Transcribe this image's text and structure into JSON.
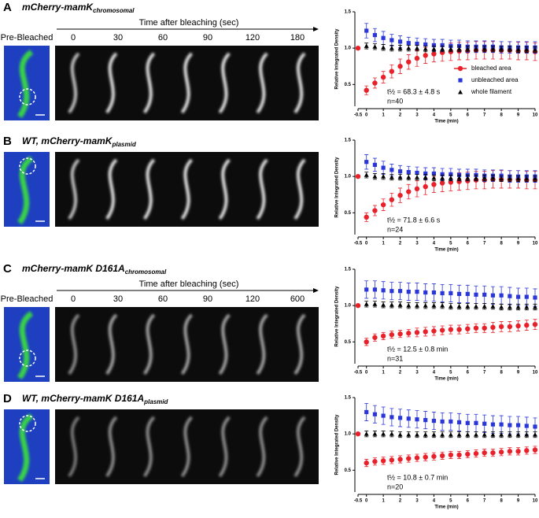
{
  "panels": [
    {
      "label": "A",
      "title": "mCherry-mamK",
      "title_sub": "chromosomal",
      "time_header": "Time after bleaching (sec)",
      "pre_label": "Pre-Bleached",
      "time_labels": [
        0,
        30,
        60,
        90,
        120,
        180
      ]
    },
    {
      "label": "B",
      "title": "WT, mCherry-mamK",
      "title_sub": "plasmid"
    },
    {
      "label": "C",
      "title": "mCherry-mamK D161A",
      "title_sub": "chromosomal",
      "time_header": "Time after bleaching (sec)",
      "pre_label": "Pre-Bleached",
      "time_labels": [
        0,
        30,
        60,
        90,
        120,
        600
      ]
    },
    {
      "label": "D",
      "title": "WT, mCherry-mamK D161A",
      "title_sub": "plasmid"
    }
  ],
  "chart_data": [
    {
      "type": "scatter",
      "xlabel": "Time (min)",
      "ylabel": "Relative Integrated Density",
      "x": [
        -0.5,
        0,
        0.5,
        1,
        1.5,
        2,
        2.5,
        3,
        3.5,
        4,
        4.5,
        5,
        5.5,
        6,
        6.5,
        7,
        7.5,
        8,
        8.5,
        9,
        9.5,
        10
      ],
      "xlim": [
        -0.5,
        10
      ],
      "xticks": [
        -0.5,
        0,
        1,
        2,
        3,
        4,
        5,
        6,
        7,
        8,
        9,
        10
      ],
      "ylim": [
        0.2,
        1.5
      ],
      "yticks": [
        0.5,
        {
          "value": 1,
          "label": "1.0"
        },
        1.5
      ],
      "legend": "right",
      "annotations": [
        "t½ = 68.3 ± 4.8 s",
        "n=40"
      ],
      "series": [
        {
          "name": "bleached area",
          "color": "#e8202a",
          "marker": "circle",
          "values": [
            1.0,
            0.42,
            0.52,
            0.6,
            0.68,
            0.75,
            0.81,
            0.86,
            0.9,
            0.92,
            0.94,
            0.95,
            0.96,
            0.96,
            0.97,
            0.97,
            0.97,
            0.97,
            0.97,
            0.96,
            0.96,
            0.95
          ],
          "errors": [
            null,
            0.06,
            0.07,
            0.08,
            0.09,
            0.1,
            0.1,
            0.11,
            0.11,
            0.11,
            0.12,
            0.12,
            0.12,
            0.12,
            0.12,
            0.12,
            0.12,
            0.12,
            0.12,
            0.12,
            0.12,
            0.12
          ]
        },
        {
          "name": "unbleached area",
          "color": "#2a36d8",
          "marker": "square",
          "values": [
            null,
            1.24,
            1.18,
            1.14,
            1.11,
            1.09,
            1.07,
            1.06,
            1.05,
            1.04,
            1.04,
            1.03,
            1.03,
            1.02,
            1.02,
            1.02,
            1.02,
            1.01,
            1.01,
            1.01,
            1.01,
            1.01
          ],
          "errors": [
            null,
            0.1,
            0.09,
            0.09,
            0.08,
            0.08,
            0.08,
            0.08,
            0.08,
            0.08,
            0.08,
            0.08,
            0.08,
            0.08,
            0.08,
            0.08,
            0.08,
            0.08,
            0.08,
            0.08,
            0.08,
            0.08
          ]
        },
        {
          "name": "whole filament",
          "color": "#000000",
          "marker": "triangle",
          "values": [
            null,
            1.03,
            1.02,
            1.01,
            1.0,
            1.0,
            1.0,
            1.0,
            0.99,
            0.99,
            0.99,
            0.99,
            0.99,
            0.99,
            0.99,
            0.99,
            0.99,
            0.99,
            0.99,
            0.98,
            0.98,
            0.98
          ],
          "errors": [
            null,
            0.04,
            0.04,
            0.04,
            0.04,
            0.04,
            0.04,
            0.04,
            0.04,
            0.04,
            0.04,
            0.04,
            0.04,
            0.04,
            0.04,
            0.04,
            0.04,
            0.04,
            0.04,
            0.04,
            0.04,
            0.04
          ]
        }
      ]
    },
    {
      "type": "scatter",
      "xlabel": "Time (min)",
      "ylabel": "Relative Integrated Density",
      "x": [
        -0.5,
        0,
        0.5,
        1,
        1.5,
        2,
        2.5,
        3,
        3.5,
        4,
        4.5,
        5,
        5.5,
        6,
        6.5,
        7,
        7.5,
        8,
        8.5,
        9,
        9.5,
        10
      ],
      "xlim": [
        -0.5,
        10
      ],
      "xticks": [
        -0.5,
        0,
        1,
        2,
        3,
        4,
        5,
        6,
        7,
        8,
        9,
        10
      ],
      "ylim": [
        0.2,
        1.5
      ],
      "yticks": [
        0.5,
        {
          "value": 1,
          "label": "1.0"
        },
        1.5
      ],
      "annotations": [
        "t½ = 71.8 ± 6.6 s",
        "n=24"
      ],
      "series": [
        {
          "color": "#e8202a",
          "marker": "circle",
          "values": [
            1.0,
            0.44,
            0.53,
            0.61,
            0.68,
            0.74,
            0.79,
            0.83,
            0.86,
            0.89,
            0.91,
            0.92,
            0.93,
            0.94,
            0.95,
            0.95,
            0.96,
            0.96,
            0.96,
            0.96,
            0.95,
            0.95
          ],
          "errors": [
            null,
            0.06,
            0.07,
            0.08,
            0.09,
            0.1,
            0.1,
            0.11,
            0.11,
            0.11,
            0.12,
            0.12,
            0.12,
            0.12,
            0.12,
            0.12,
            0.12,
            0.12,
            0.12,
            0.12,
            0.12,
            0.12
          ]
        },
        {
          "color": "#2a36d8",
          "marker": "square",
          "values": [
            null,
            1.2,
            1.16,
            1.12,
            1.09,
            1.07,
            1.06,
            1.05,
            1.04,
            1.04,
            1.03,
            1.03,
            1.02,
            1.02,
            1.02,
            1.01,
            1.01,
            1.01,
            1.0,
            1.0,
            1.0,
            1.0
          ],
          "errors": [
            null,
            0.1,
            0.09,
            0.09,
            0.08,
            0.08,
            0.08,
            0.08,
            0.08,
            0.08,
            0.08,
            0.08,
            0.08,
            0.08,
            0.08,
            0.08,
            0.08,
            0.08,
            0.08,
            0.08,
            0.08,
            0.08
          ]
        },
        {
          "color": "#000000",
          "marker": "triangle",
          "values": [
            null,
            1.02,
            1.0,
            1.0,
            0.99,
            0.99,
            0.99,
            0.99,
            0.99,
            0.98,
            0.98,
            0.98,
            0.98,
            0.98,
            0.98,
            0.98,
            0.98,
            0.97,
            0.97,
            0.97,
            0.97,
            0.97
          ],
          "errors": [
            null,
            0.04,
            0.04,
            0.04,
            0.04,
            0.04,
            0.04,
            0.04,
            0.04,
            0.04,
            0.04,
            0.04,
            0.04,
            0.04,
            0.04,
            0.04,
            0.04,
            0.04,
            0.04,
            0.04,
            0.04,
            0.04
          ]
        }
      ]
    },
    {
      "type": "scatter",
      "xlabel": "Time (min)",
      "ylabel": "Relative Integrated Density",
      "x": [
        -0.5,
        0,
        0.5,
        1,
        1.5,
        2,
        2.5,
        3,
        3.5,
        4,
        4.5,
        5,
        5.5,
        6,
        6.5,
        7,
        7.5,
        8,
        8.5,
        9,
        9.5,
        10
      ],
      "xlim": [
        -0.5,
        10
      ],
      "xticks": [
        -0.5,
        0,
        1,
        2,
        3,
        4,
        5,
        6,
        7,
        8,
        9,
        10
      ],
      "ylim": [
        0.2,
        1.5
      ],
      "yticks": [
        0.5,
        {
          "value": 1,
          "label": "1.0"
        },
        1.5
      ],
      "annotations": [
        "t½ = 12.5 ± 0.8 min",
        "n=31"
      ],
      "series": [
        {
          "color": "#e8202a",
          "marker": "circle",
          "values": [
            1.0,
            0.5,
            0.56,
            0.58,
            0.6,
            0.61,
            0.62,
            0.63,
            0.64,
            0.65,
            0.66,
            0.67,
            0.67,
            0.68,
            0.69,
            0.69,
            0.7,
            0.71,
            0.71,
            0.72,
            0.73,
            0.74
          ],
          "errors": [
            null,
            0.05,
            0.05,
            0.05,
            0.05,
            0.05,
            0.05,
            0.06,
            0.06,
            0.06,
            0.06,
            0.06,
            0.06,
            0.06,
            0.06,
            0.06,
            0.07,
            0.07,
            0.07,
            0.07,
            0.07,
            0.07
          ]
        },
        {
          "color": "#2a36d8",
          "marker": "square",
          "values": [
            null,
            1.22,
            1.22,
            1.21,
            1.2,
            1.2,
            1.19,
            1.19,
            1.18,
            1.18,
            1.17,
            1.17,
            1.16,
            1.16,
            1.15,
            1.15,
            1.14,
            1.14,
            1.13,
            1.12,
            1.12,
            1.11
          ],
          "errors": [
            null,
            0.12,
            0.12,
            0.12,
            0.12,
            0.12,
            0.12,
            0.12,
            0.12,
            0.12,
            0.12,
            0.12,
            0.12,
            0.12,
            0.12,
            0.12,
            0.12,
            0.12,
            0.12,
            0.12,
            0.12,
            0.12
          ]
        },
        {
          "color": "#000000",
          "marker": "triangle",
          "values": [
            null,
            1.02,
            1.02,
            1.01,
            1.01,
            1.01,
            1.0,
            1.0,
            1.0,
            1.0,
            1.0,
            0.99,
            0.99,
            0.99,
            0.99,
            0.99,
            0.99,
            0.98,
            0.98,
            0.98,
            0.98,
            0.98
          ],
          "errors": [
            null,
            0.04,
            0.04,
            0.04,
            0.04,
            0.04,
            0.04,
            0.04,
            0.04,
            0.04,
            0.04,
            0.04,
            0.04,
            0.04,
            0.04,
            0.04,
            0.04,
            0.04,
            0.04,
            0.04,
            0.04,
            0.04
          ]
        }
      ]
    },
    {
      "type": "scatter",
      "xlabel": "Time (min)",
      "ylabel": "Relative Integrated Density",
      "x": [
        -0.5,
        0,
        0.5,
        1,
        1.5,
        2,
        2.5,
        3,
        3.5,
        4,
        4.5,
        5,
        5.5,
        6,
        6.5,
        7,
        7.5,
        8,
        8.5,
        9,
        9.5,
        10
      ],
      "xlim": [
        -0.5,
        10
      ],
      "xticks": [
        -0.5,
        0,
        1,
        2,
        3,
        4,
        5,
        6,
        7,
        8,
        9,
        10
      ],
      "ylim": [
        0.2,
        1.5
      ],
      "yticks": [
        0.5,
        {
          "value": 1,
          "label": "1.0"
        },
        1.5
      ],
      "annotations": [
        "t½ = 10.8 ± 0.7 min",
        "n=20"
      ],
      "series": [
        {
          "color": "#e8202a",
          "marker": "circle",
          "values": [
            1.0,
            0.6,
            0.62,
            0.63,
            0.64,
            0.65,
            0.66,
            0.67,
            0.68,
            0.69,
            0.7,
            0.71,
            0.71,
            0.72,
            0.73,
            0.74,
            0.74,
            0.75,
            0.76,
            0.76,
            0.77,
            0.78
          ],
          "errors": [
            null,
            0.05,
            0.05,
            0.05,
            0.05,
            0.05,
            0.05,
            0.05,
            0.05,
            0.05,
            0.05,
            0.05,
            0.05,
            0.05,
            0.05,
            0.05,
            0.05,
            0.05,
            0.05,
            0.05,
            0.05,
            0.05
          ]
        },
        {
          "color": "#2a36d8",
          "marker": "square",
          "values": [
            null,
            1.3,
            1.27,
            1.25,
            1.23,
            1.22,
            1.21,
            1.2,
            1.19,
            1.18,
            1.17,
            1.17,
            1.16,
            1.15,
            1.15,
            1.14,
            1.13,
            1.13,
            1.12,
            1.12,
            1.11,
            1.1
          ],
          "errors": [
            null,
            0.12,
            0.12,
            0.12,
            0.12,
            0.12,
            0.12,
            0.12,
            0.12,
            0.12,
            0.12,
            0.12,
            0.12,
            0.12,
            0.12,
            0.12,
            0.12,
            0.12,
            0.12,
            0.12,
            0.12,
            0.12
          ]
        },
        {
          "color": "#000000",
          "marker": "triangle",
          "values": [
            null,
            1.0,
            1.0,
            1.0,
            1.0,
            0.99,
            0.99,
            0.99,
            0.99,
            0.99,
            0.99,
            0.99,
            0.99,
            0.99,
            0.99,
            0.99,
            0.99,
            0.99,
            0.99,
            0.99,
            0.99,
            0.99
          ],
          "errors": [
            null,
            0.04,
            0.04,
            0.04,
            0.04,
            0.04,
            0.04,
            0.04,
            0.04,
            0.04,
            0.04,
            0.04,
            0.04,
            0.04,
            0.04,
            0.04,
            0.04,
            0.04,
            0.04,
            0.04,
            0.04,
            0.04
          ]
        }
      ]
    }
  ]
}
